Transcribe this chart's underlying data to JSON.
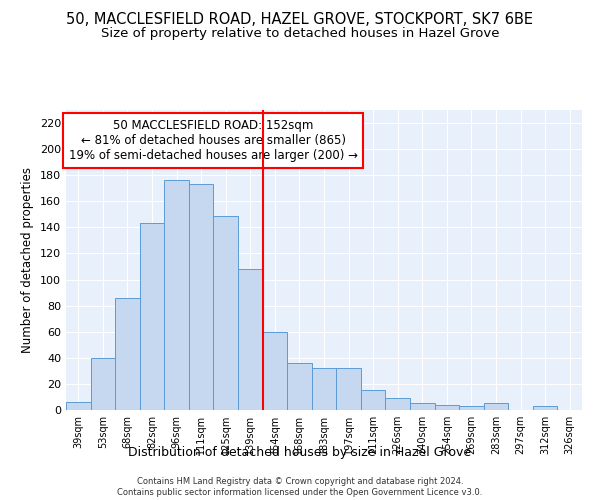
{
  "title1": "50, MACCLESFIELD ROAD, HAZEL GROVE, STOCKPORT, SK7 6BE",
  "title2": "Size of property relative to detached houses in Hazel Grove",
  "xlabel": "Distribution of detached houses by size in Hazel Grove",
  "ylabel": "Number of detached properties",
  "footer1": "Contains HM Land Registry data © Crown copyright and database right 2024.",
  "footer2": "Contains public sector information licensed under the Open Government Licence v3.0.",
  "categories": [
    "39sqm",
    "53sqm",
    "68sqm",
    "82sqm",
    "96sqm",
    "111sqm",
    "125sqm",
    "139sqm",
    "154sqm",
    "168sqm",
    "183sqm",
    "197sqm",
    "211sqm",
    "226sqm",
    "240sqm",
    "254sqm",
    "269sqm",
    "283sqm",
    "297sqm",
    "312sqm",
    "326sqm"
  ],
  "values": [
    6,
    40,
    86,
    143,
    176,
    173,
    149,
    108,
    60,
    36,
    32,
    32,
    15,
    9,
    5,
    4,
    3,
    5,
    0,
    3,
    0
  ],
  "bar_color": "#c5d8f0",
  "bar_edge_color": "#5b9bd5",
  "red_line_index": 8,
  "annotation_line1": "50 MACCLESFIELD ROAD: 152sqm",
  "annotation_line2": "← 81% of detached houses are smaller (865)",
  "annotation_line3": "19% of semi-detached houses are larger (200) →",
  "ylim": [
    0,
    230
  ],
  "yticks": [
    0,
    20,
    40,
    60,
    80,
    100,
    120,
    140,
    160,
    180,
    200,
    220
  ],
  "background_color": "#e8f0fb",
  "grid_color": "#ffffff",
  "title1_fontsize": 10.5,
  "title2_fontsize": 9.5,
  "xlabel_fontsize": 9,
  "ylabel_fontsize": 8.5,
  "annot_fontsize": 8.5
}
